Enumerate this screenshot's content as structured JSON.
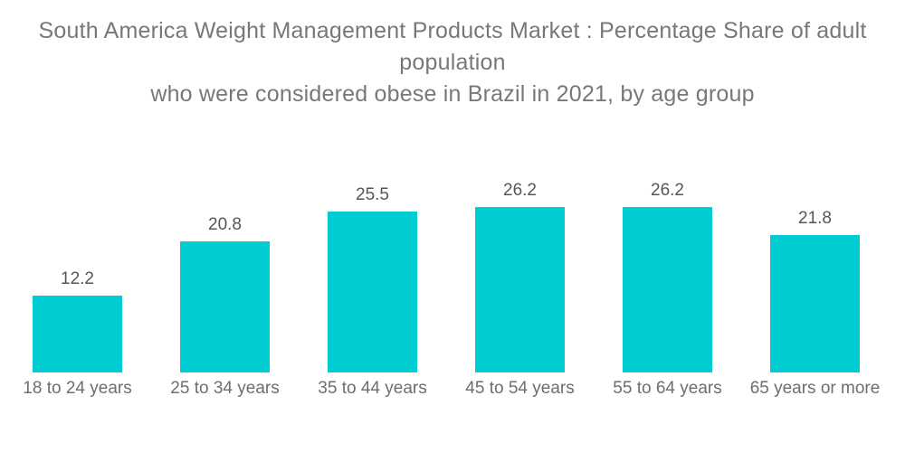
{
  "title": {
    "line1": "South America Weight Management Products Market : Percentage Share of adult population",
    "line2": "who were considered obese in Brazil in 2021, by age group"
  },
  "chart_data": {
    "type": "bar",
    "title": "South America Weight Management Products Market : Percentage Share of adult population who were considered obese in Brazil in 2021, by age group",
    "categories": [
      "18 to 24 years",
      "25 to 34 years",
      "35 to 44 years",
      "45 to 54 years",
      "55 to 64 years",
      "65 years or more"
    ],
    "values": [
      12.2,
      20.8,
      25.5,
      26.2,
      26.2,
      21.8
    ],
    "xlabel": "",
    "ylabel": "",
    "ylim": [
      0,
      26.2
    ],
    "unit": "percent",
    "grid": false,
    "legend": false,
    "data_labels_position": "above-bars",
    "bar_color": "#00cdd1",
    "title_color": "#77787b",
    "value_label_color": "#55565a",
    "category_label_color": "#6d6e70",
    "background_color": "#ffffff"
  }
}
